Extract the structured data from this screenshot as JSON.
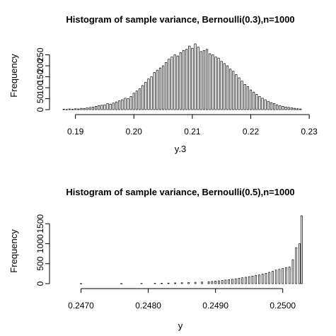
{
  "chart_data": [
    {
      "type": "bar",
      "title": "Histogram of sample variance, Bernoulli(0.3),n=1000",
      "xlabel": "y.3",
      "ylabel": "Frequency",
      "xlim": [
        0.1875,
        0.2295
      ],
      "ylim": [
        0,
        300
      ],
      "x_ticks": [
        0.19,
        0.2,
        0.21,
        0.22,
        0.23
      ],
      "x_tick_labels": [
        "0.19",
        "0.20",
        "0.21",
        "0.22",
        "0.23"
      ],
      "y_ticks": [
        0,
        50,
        100,
        150,
        200,
        250
      ],
      "y_tick_labels": [
        "0",
        "50",
        "100",
        "150",
        "200",
        "250"
      ],
      "x": [
        0.188,
        0.1885,
        0.189,
        0.1895,
        0.19,
        0.1905,
        0.191,
        0.1915,
        0.192,
        0.1925,
        0.193,
        0.1935,
        0.194,
        0.1945,
        0.195,
        0.1955,
        0.196,
        0.1965,
        0.197,
        0.1975,
        0.198,
        0.1985,
        0.199,
        0.1995,
        0.2,
        0.2005,
        0.201,
        0.2015,
        0.202,
        0.2025,
        0.203,
        0.2035,
        0.204,
        0.2045,
        0.205,
        0.2055,
        0.206,
        0.2065,
        0.207,
        0.2075,
        0.208,
        0.2085,
        0.209,
        0.2095,
        0.21,
        0.2105,
        0.211,
        0.2115,
        0.212,
        0.2125,
        0.213,
        0.2135,
        0.214,
        0.2145,
        0.215,
        0.2155,
        0.216,
        0.2165,
        0.217,
        0.2175,
        0.218,
        0.2185,
        0.219,
        0.2195,
        0.22,
        0.2205,
        0.221,
        0.2215,
        0.222,
        0.2225,
        0.223,
        0.2235,
        0.224,
        0.2245,
        0.225,
        0.2255,
        0.226,
        0.2265,
        0.227,
        0.2275,
        0.228,
        0.2285
      ],
      "values": [
        2,
        1,
        3,
        2,
        4,
        3,
        6,
        5,
        8,
        10,
        12,
        15,
        18,
        20,
        22,
        28,
        25,
        30,
        35,
        40,
        45,
        52,
        50,
        60,
        75,
        85,
        95,
        110,
        125,
        140,
        150,
        170,
        180,
        190,
        200,
        215,
        230,
        240,
        250,
        245,
        260,
        270,
        275,
        290,
        280,
        300,
        285,
        265,
        270,
        275,
        255,
        250,
        240,
        235,
        220,
        210,
        200,
        185,
        175,
        160,
        145,
        130,
        115,
        105,
        90,
        80,
        70,
        60,
        52,
        45,
        38,
        32,
        28,
        22,
        18,
        15,
        12,
        10,
        8,
        6,
        4,
        3
      ]
    },
    {
      "type": "bar",
      "title": "Histogram of sample variance, Bernoulli(0.5),n=1000",
      "xlabel": "y",
      "ylabel": "Frequency",
      "xlim": [
        0.2467,
        0.25035
      ],
      "ylim": [
        0,
        1700
      ],
      "x_ticks": [
        0.247,
        0.248,
        0.249,
        0.25
      ],
      "x_tick_labels": [
        "0.2470",
        "0.2480",
        "0.2490",
        "0.2500"
      ],
      "y_ticks": [
        0,
        500,
        1000,
        1500
      ],
      "y_tick_labels": [
        "0",
        "500",
        "1000",
        "1500"
      ],
      "x": [
        0.247,
        0.2476,
        0.2479,
        0.2481,
        0.2482,
        0.2483,
        0.2484,
        0.2485,
        0.2486,
        0.2487,
        0.2488,
        0.2489,
        0.24895,
        0.249,
        0.24905,
        0.2491,
        0.24915,
        0.2492,
        0.24925,
        0.2493,
        0.24935,
        0.2494,
        0.24945,
        0.2495,
        0.24955,
        0.2496,
        0.24965,
        0.2497,
        0.24975,
        0.2498,
        0.24985,
        0.2499,
        0.24995,
        0.25,
        0.25005,
        0.2501,
        0.25015,
        0.2502,
        0.25025,
        0.25028
      ],
      "values": [
        3,
        4,
        6,
        8,
        10,
        14,
        18,
        22,
        28,
        34,
        40,
        48,
        55,
        62,
        70,
        80,
        90,
        100,
        110,
        122,
        135,
        148,
        160,
        175,
        190,
        205,
        220,
        240,
        260,
        285,
        310,
        340,
        360,
        380,
        400,
        420,
        600,
        900,
        1000,
        1700
      ]
    }
  ]
}
